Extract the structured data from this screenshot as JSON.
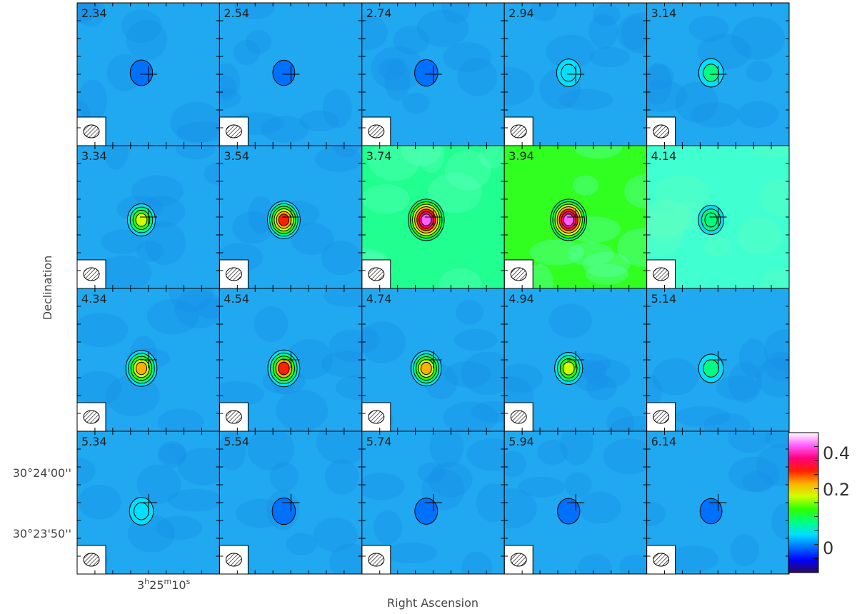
{
  "figure": {
    "xlabel": "Right Ascension",
    "ylabel": "Declination",
    "ra_tick": {
      "h": "3",
      "m": "25",
      "s": "10"
    },
    "dec_ticks": [
      "30°24'00''",
      "30°23'50''"
    ]
  },
  "colorbar": {
    "labels": [
      "0.4",
      "0.2",
      "0"
    ],
    "stops": [
      "#2a0a5a",
      "#0000ff",
      "#0070ff",
      "#00e0ff",
      "#00ff80",
      "#30ff00",
      "#d0ff00",
      "#ffb000",
      "#ff2000",
      "#ff0080",
      "#ff60ff",
      "#ffffff"
    ]
  },
  "channels": [
    {
      "label": "2.34",
      "peak": 0.06,
      "halo": 0.0
    },
    {
      "label": "2.54",
      "peak": 0.05,
      "halo": 0.0
    },
    {
      "label": "2.74",
      "peak": 0.08,
      "halo": 0.0
    },
    {
      "label": "2.94",
      "peak": 0.1,
      "halo": 0.0
    },
    {
      "label": "3.14",
      "peak": 0.12,
      "halo": 0.0
    },
    {
      "label": "3.34",
      "peak": 0.2,
      "halo": 0.0
    },
    {
      "label": "3.54",
      "peak": 0.32,
      "halo": 0.0
    },
    {
      "label": "3.74",
      "peak": 0.4,
      "halo": 0.08
    },
    {
      "label": "3.94",
      "peak": 0.4,
      "halo": 0.12
    },
    {
      "label": "4.14",
      "peak": 0.14,
      "halo": 0.05
    },
    {
      "label": "4.34",
      "peak": 0.28,
      "halo": 0.0
    },
    {
      "label": "4.54",
      "peak": 0.3,
      "halo": 0.0
    },
    {
      "label": "4.74",
      "peak": 0.26,
      "halo": 0.0
    },
    {
      "label": "4.94",
      "peak": 0.2,
      "halo": 0.0
    },
    {
      "label": "5.14",
      "peak": 0.12,
      "halo": 0.0
    },
    {
      "label": "5.34",
      "peak": 0.1,
      "halo": 0.0
    },
    {
      "label": "5.54",
      "peak": 0.08,
      "halo": 0.0
    },
    {
      "label": "5.74",
      "peak": 0.07,
      "halo": 0.0
    },
    {
      "label": "5.94",
      "peak": 0.06,
      "halo": 0.0
    },
    {
      "label": "6.14",
      "peak": 0.05,
      "halo": 0.0
    }
  ]
}
